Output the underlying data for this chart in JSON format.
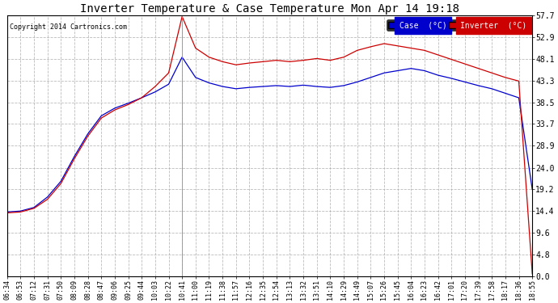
{
  "title": "Inverter Temperature & Case Temperature Mon Apr 14 19:18",
  "copyright": "Copyright 2014 Cartronics.com",
  "legend_labels": [
    "Case  (°C)",
    "Inverter  (°C)"
  ],
  "legend_colors": [
    "#0000cc",
    "#cc0000"
  ],
  "line_colors": [
    "#0000cc",
    "#cc0000"
  ],
  "fig_bg_color": "#ffffff",
  "plot_bg_color": "#ffffff",
  "grid_color": "#aaaaaa",
  "title_color": "#000000",
  "yticks": [
    0.0,
    4.8,
    9.6,
    14.4,
    19.2,
    24.0,
    28.9,
    33.7,
    38.5,
    43.3,
    48.1,
    52.9,
    57.7
  ],
  "ylim": [
    0.0,
    57.7
  ],
  "xtick_labels": [
    "06:34",
    "06:53",
    "07:12",
    "07:31",
    "07:50",
    "08:09",
    "08:28",
    "08:47",
    "09:06",
    "09:25",
    "09:44",
    "10:03",
    "10:22",
    "10:41",
    "11:00",
    "11:19",
    "11:38",
    "11:57",
    "12:16",
    "12:35",
    "12:54",
    "13:13",
    "13:32",
    "13:51",
    "14:10",
    "14:29",
    "14:49",
    "15:07",
    "15:26",
    "15:45",
    "16:04",
    "16:23",
    "16:42",
    "17:01",
    "17:20",
    "17:39",
    "17:58",
    "18:17",
    "18:36",
    "18:55"
  ],
  "case_data": [
    14.2,
    14.4,
    15.2,
    17.5,
    21.0,
    26.5,
    31.5,
    35.5,
    37.2,
    38.3,
    39.5,
    40.8,
    42.5,
    48.5,
    44.0,
    42.8,
    42.0,
    41.5,
    41.8,
    42.0,
    42.2,
    42.0,
    42.3,
    42.0,
    41.8,
    42.2,
    43.0,
    44.0,
    45.0,
    45.5,
    46.0,
    45.5,
    44.5,
    43.8,
    43.0,
    42.2,
    41.5,
    40.5,
    39.5,
    19.2
  ],
  "inverter_data": [
    14.0,
    14.2,
    15.0,
    17.0,
    20.5,
    26.0,
    31.0,
    35.0,
    36.8,
    38.0,
    39.5,
    42.0,
    45.0,
    57.5,
    50.5,
    48.5,
    47.5,
    46.8,
    47.2,
    47.5,
    47.8,
    47.5,
    47.8,
    48.2,
    47.8,
    48.5,
    50.0,
    50.8,
    51.5,
    51.0,
    50.5,
    50.0,
    49.0,
    48.0,
    47.0,
    46.0,
    45.0,
    44.0,
    43.2,
    0.5
  ],
  "vline_x": 13,
  "figsize": [
    6.9,
    3.75
  ],
  "dpi": 100
}
